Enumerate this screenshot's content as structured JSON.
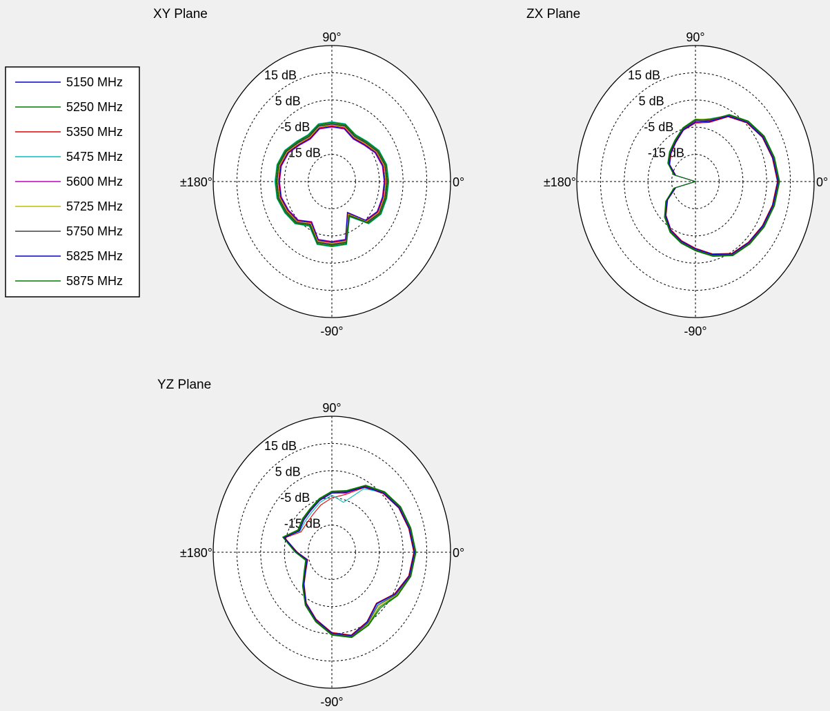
{
  "legend": {
    "entries": [
      {
        "label": "5150 MHz",
        "color": "#0000cc"
      },
      {
        "label": "5250 MHz",
        "color": "#007a00"
      },
      {
        "label": "5350 MHz",
        "color": "#e00000"
      },
      {
        "label": "5475 MHz",
        "color": "#00bfbf"
      },
      {
        "label": "5600 MHz",
        "color": "#bf00bf"
      },
      {
        "label": "5725 MHz",
        "color": "#bfbf00"
      },
      {
        "label": "5750 MHz",
        "color": "#404040"
      },
      {
        "label": "5825 MHz",
        "color": "#0000cc"
      },
      {
        "label": "5875 MHz",
        "color": "#007a00"
      }
    ]
  },
  "chart_data": [
    {
      "type": "polar",
      "title": "XY Plane",
      "angle_labels": {
        "top": "90°",
        "right": "0°",
        "bottom": "-90°",
        "left": "±180°"
      },
      "radial_labels": [
        "15 dB",
        "5 dB",
        "-5 dB",
        "-15 dB"
      ],
      "r_range_dB": [
        -25,
        25
      ],
      "grid": true,
      "angles_deg": [
        0,
        15,
        30,
        45,
        60,
        75,
        90,
        105,
        120,
        135,
        150,
        165,
        180,
        195,
        210,
        225,
        240,
        255,
        270,
        285,
        300,
        315,
        330,
        345
      ],
      "series": [
        {
          "name": "5150 MHz",
          "gain_dB": [
            -2,
            -2,
            -3,
            -5,
            -6,
            -4,
            -4,
            -4,
            -6,
            -5,
            -3,
            -2,
            -2,
            -2,
            -3,
            -4,
            -7,
            -2,
            -2,
            -2,
            -11,
            -4,
            -2,
            -2
          ]
        },
        {
          "name": "5250 MHz",
          "gain_dB": [
            -1.5,
            -1.5,
            -2.5,
            -4.5,
            -5.5,
            -3.5,
            -3.5,
            -3.5,
            -5.5,
            -4.5,
            -2.5,
            -1.5,
            -1.5,
            -1.5,
            -2.5,
            -3.5,
            -6.5,
            -1.5,
            -1.5,
            -1.5,
            -10.5,
            -3.5,
            -1.5,
            -1.5
          ]
        },
        {
          "name": "5350 MHz",
          "gain_dB": [
            -2.5,
            -2.5,
            -3.5,
            -5.5,
            -6.5,
            -4.5,
            -4.5,
            -4.5,
            -6.5,
            -5.5,
            -3.5,
            -2.5,
            -2.5,
            -2.5,
            -3.5,
            -4.5,
            -7.5,
            -2.5,
            -2.5,
            -2.5,
            -11.5,
            -4.5,
            -2.5,
            -2.5
          ]
        },
        {
          "name": "5475 MHz",
          "gain_dB": [
            -1,
            -1,
            -2,
            -4,
            -5,
            -3,
            -3,
            -3,
            -5,
            -4,
            -2,
            -1,
            -1,
            -1,
            -2,
            -3,
            -6,
            -1,
            -1,
            -1,
            -10,
            -3,
            -1,
            -1
          ]
        },
        {
          "name": "5600 MHz",
          "gain_dB": [
            -3,
            -3,
            -4,
            -6,
            -7,
            -5,
            -5,
            -5,
            -7,
            -6,
            -4,
            -3,
            -3,
            -3,
            -4,
            -5,
            -8,
            -3,
            -3,
            -3,
            -12,
            -5,
            -3,
            -3
          ]
        },
        {
          "name": "5725 MHz",
          "gain_dB": [
            -2.2,
            -2.2,
            -3.2,
            -5.2,
            -6.2,
            -4.2,
            -4.2,
            -4.2,
            -6.2,
            -5.2,
            -3.2,
            -2.2,
            -2.2,
            -2.2,
            -3.2,
            -4.2,
            -7.2,
            -2.2,
            -2.2,
            -2.2,
            -11.2,
            -4.2,
            -2.2,
            -2.2
          ]
        },
        {
          "name": "5750 MHz",
          "gain_dB": [
            -1.8,
            -1.8,
            -2.8,
            -4.8,
            -5.8,
            -3.8,
            -3.8,
            -3.8,
            -5.8,
            -4.8,
            -2.8,
            -1.8,
            -1.8,
            -1.8,
            -2.8,
            -3.8,
            -6.8,
            -1.8,
            -1.8,
            -1.8,
            -10.8,
            -3.8,
            -1.8,
            -1.8
          ]
        },
        {
          "name": "5825 MHz",
          "gain_dB": [
            -2.8,
            -2.8,
            -3.8,
            -5.8,
            -6.8,
            -4.8,
            -4.8,
            -4.8,
            -6.8,
            -5.8,
            -3.8,
            -2.8,
            -2.8,
            -2.8,
            -3.8,
            -4.8,
            -7.8,
            -2.8,
            -2.8,
            -2.8,
            -11.8,
            -4.8,
            -2.8,
            -2.8
          ]
        },
        {
          "name": "5875 MHz",
          "gain_dB": [
            -1.2,
            -1.2,
            -2.2,
            -4.2,
            -5.2,
            -3.2,
            -3.2,
            -3.2,
            -5.2,
            -4.2,
            -2.2,
            -1.2,
            -1.2,
            -1.2,
            -2.2,
            -3.2,
            -6.2,
            -1.2,
            -1.2,
            -1.2,
            -10.2,
            -3.2,
            -1.2,
            -1.2
          ]
        }
      ]
    },
    {
      "type": "polar",
      "title": "ZX Plane",
      "angle_labels": {
        "top": "90°",
        "right": "0°",
        "bottom": "-90°",
        "left": "±180°"
      },
      "radial_labels": [
        "15 dB",
        "5 dB",
        "-5 dB",
        "-15 dB"
      ],
      "r_range_dB": [
        -25,
        25
      ],
      "grid": true,
      "angles_deg": [
        0,
        15,
        30,
        45,
        60,
        75,
        90,
        105,
        120,
        135,
        150,
        165,
        180,
        195,
        210,
        225,
        240,
        255,
        270,
        285,
        300,
        315,
        330,
        345
      ],
      "series": [
        {
          "name": "5150 MHz",
          "gain_dB": [
            10,
            9,
            8,
            6,
            3,
            -2,
            -3,
            -5,
            -8,
            -10,
            -12,
            -16,
            -25,
            -16,
            -11,
            -7,
            -4,
            -2,
            0,
            3,
            6,
            7,
            8,
            9
          ]
        },
        {
          "name": "5250 MHz",
          "gain_dB": [
            10.5,
            9.5,
            8.5,
            6.5,
            3.5,
            -1.5,
            -2,
            -4.5,
            -7.5,
            -9.5,
            -11.5,
            -15.5,
            -25,
            -15.5,
            -10.5,
            -6.5,
            -3.5,
            -1.5,
            0.5,
            3.5,
            6.5,
            7.5,
            8.5,
            9.5
          ]
        },
        {
          "name": "5350 MHz",
          "gain_dB": [
            9.5,
            8.5,
            7.5,
            5.5,
            2.5,
            -2.5,
            -3.5,
            -5.5,
            -8.5,
            -10.5,
            -12.5,
            -16.5,
            -25,
            -16.5,
            -11.5,
            -7.5,
            -4.5,
            -2.5,
            -0.5,
            2.5,
            5.5,
            6.5,
            7.5,
            8.5
          ]
        },
        {
          "name": "5475 MHz",
          "gain_dB": [
            10,
            9,
            8,
            6,
            3,
            -1,
            -2.5,
            -5,
            -8,
            -10,
            -12,
            -16,
            -25,
            -16,
            -11,
            -7,
            -4,
            -2,
            0,
            3,
            6,
            7,
            8,
            9
          ]
        },
        {
          "name": "5600 MHz",
          "gain_dB": [
            9.8,
            8.8,
            7.8,
            5.8,
            2.8,
            -1.8,
            -3,
            -5.2,
            -8.2,
            -10.2,
            -12.2,
            -16.2,
            -25,
            -16.2,
            -11.2,
            -7.2,
            -4.2,
            -2.2,
            -0.2,
            2.8,
            5.8,
            6.8,
            7.8,
            8.8
          ]
        },
        {
          "name": "5725 MHz",
          "gain_dB": [
            10.2,
            9.2,
            8.2,
            6.2,
            3.2,
            -1.2,
            -2.2,
            -4.8,
            -7.8,
            -9.8,
            -11.8,
            -15.8,
            -25,
            -15.8,
            -10.8,
            -6.8,
            -3.8,
            -1.8,
            0.2,
            3.2,
            6.2,
            7.2,
            8.2,
            9.2
          ]
        },
        {
          "name": "5750 MHz",
          "gain_dB": [
            10.1,
            9.1,
            8.1,
            6.1,
            3.1,
            -1.6,
            -2.6,
            -4.9,
            -7.9,
            -9.9,
            -11.9,
            -15.9,
            -25,
            -15.9,
            -10.9,
            -6.9,
            -3.9,
            -1.9,
            0.1,
            3.1,
            6.1,
            7.1,
            8.1,
            9.1
          ]
        },
        {
          "name": "5825 MHz",
          "gain_dB": [
            9.7,
            8.7,
            7.7,
            5.7,
            2.7,
            -2.2,
            -3.2,
            -5.3,
            -8.3,
            -10.3,
            -12.3,
            -16.3,
            -25,
            -16.3,
            -11.3,
            -7.3,
            -4.3,
            -2.3,
            -0.3,
            2.7,
            5.7,
            6.7,
            7.7,
            8.7
          ]
        },
        {
          "name": "5875 MHz",
          "gain_dB": [
            10.3,
            9.3,
            8.3,
            6.3,
            3.3,
            -1.3,
            -2.3,
            -4.7,
            -7.7,
            -9.7,
            -11.7,
            -15.7,
            -25,
            -15.7,
            -10.7,
            -6.7,
            -3.7,
            -1.7,
            0.3,
            3.3,
            6.3,
            7.3,
            8.3,
            9.3
          ]
        }
      ]
    },
    {
      "type": "polar",
      "title": "YZ Plane",
      "angle_labels": {
        "top": "90°",
        "right": "0°",
        "bottom": "-90°",
        "left": "±180°"
      },
      "radial_labels": [
        "15 dB",
        "5 dB",
        "-5 dB",
        "-15 dB"
      ],
      "r_range_dB": [
        -25,
        25
      ],
      "grid": true,
      "angles_deg": [
        0,
        15,
        30,
        45,
        60,
        75,
        90,
        105,
        120,
        135,
        150,
        165,
        180,
        195,
        210,
        225,
        240,
        255,
        270,
        285,
        300,
        315,
        330,
        345
      ],
      "series": [
        {
          "name": "5150 MHz",
          "gain_dB": [
            10,
            9,
            8,
            6,
            3,
            -2,
            -3,
            -5,
            -7,
            -8,
            -9,
            -4,
            -10,
            -14,
            -12,
            -8,
            -3,
            1,
            5,
            7,
            5,
            2,
            6,
            9
          ]
        },
        {
          "name": "5250 MHz",
          "gain_dB": [
            10.5,
            9.5,
            8.5,
            6.5,
            3.5,
            -1.5,
            -2.5,
            -4.5,
            -6.5,
            -7.5,
            -8.5,
            -3.5,
            -9.5,
            -13.5,
            -11.5,
            -7.5,
            -2.5,
            1.5,
            5.5,
            7.5,
            6,
            4,
            7,
            9.5
          ]
        },
        {
          "name": "5350 MHz",
          "gain_dB": [
            9.5,
            8.5,
            7.5,
            5.5,
            2.5,
            -3,
            -5,
            -7,
            -9,
            -10,
            -10,
            -4.5,
            -10.5,
            -14.5,
            -12.5,
            -8.5,
            -3.5,
            0.5,
            4.5,
            6.5,
            4.5,
            1.5,
            5.5,
            8.5
          ]
        },
        {
          "name": "5475 MHz",
          "gain_dB": [
            10,
            9,
            8,
            6,
            2,
            -6,
            -4,
            -6,
            -8,
            -9,
            -9.5,
            -4,
            -10,
            -14,
            -12,
            -8,
            -3,
            1,
            5,
            7,
            5,
            2,
            6,
            9
          ]
        },
        {
          "name": "5600 MHz",
          "gain_dB": [
            9.8,
            8.8,
            7.8,
            5.8,
            2.8,
            -2.5,
            -3.2,
            -5.2,
            -7.2,
            -8.2,
            -9.2,
            -4.2,
            -10.2,
            -14.2,
            -12.2,
            -8.2,
            -3.2,
            0.8,
            4.8,
            6.8,
            4.8,
            1.8,
            5.8,
            8.8
          ]
        },
        {
          "name": "5725 MHz",
          "gain_dB": [
            10.2,
            9.2,
            8.2,
            6.2,
            3.2,
            -1.8,
            -2.8,
            -4.8,
            -6.8,
            -7.8,
            -8.8,
            -3.8,
            -9.8,
            -13.8,
            -11.8,
            -7.8,
            -2.8,
            1.2,
            5.2,
            7.2,
            5.5,
            3,
            6.5,
            9.2
          ]
        },
        {
          "name": "5750 MHz",
          "gain_dB": [
            10.1,
            9.1,
            8.1,
            6.1,
            3.1,
            -1.9,
            -2.9,
            -4.9,
            -6.9,
            -7.9,
            -8.9,
            -3.9,
            -9.9,
            -13.9,
            -11.9,
            -7.9,
            -2.9,
            1.1,
            5.1,
            7.1,
            5.2,
            2.5,
            6.2,
            9.1
          ]
        },
        {
          "name": "5825 MHz",
          "gain_dB": [
            9.7,
            8.7,
            7.7,
            5.7,
            2.7,
            -2.3,
            -3.3,
            -5.3,
            -7.3,
            -8.3,
            -9.3,
            -4.3,
            -10.3,
            -14.3,
            -12.3,
            -8.3,
            -3.3,
            0.7,
            4.7,
            6.7,
            4.7,
            1.7,
            5.7,
            8.7
          ]
        },
        {
          "name": "5875 MHz",
          "gain_dB": [
            10.3,
            9.3,
            8.3,
            6.3,
            3.3,
            -1.7,
            -2.7,
            -4.7,
            -6.7,
            -7.7,
            -8.7,
            -3.7,
            -9.7,
            -13.7,
            -11.7,
            -7.7,
            -2.7,
            1.3,
            5.3,
            7.3,
            5.8,
            3.5,
            6.8,
            9.3
          ]
        }
      ]
    }
  ]
}
